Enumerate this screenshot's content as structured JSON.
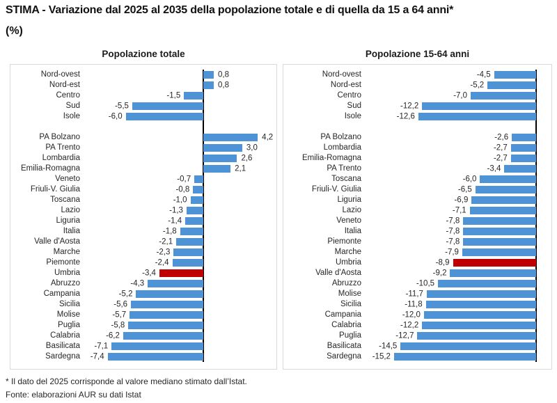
{
  "header": {
    "title": "STIMA - Variazione dal 2025 al 2035 della popolazione totale e di quella da 15 a 64 anni*",
    "unit_line": "(%)"
  },
  "footer": {
    "note": "* Il dato del 2025 corrisponde al valore mediano stimato dall’Istat.",
    "source": "Fonte: elaborazioni AUR su dati Istat"
  },
  "colors": {
    "bar": "#4E93D6",
    "highlight": "#C00000",
    "axis": "#000000",
    "panel_border": "#D9D9D9",
    "text": "#262626"
  },
  "chart_data": [
    {
      "type": "bar",
      "orientation": "horizontal",
      "title": "Popolazione totale",
      "unit": "%",
      "xlim": [
        -9.1,
        5.32
      ],
      "grid": false,
      "legend": false,
      "groups": [
        {
          "name": "macro-aree",
          "rows": [
            {
              "label": "Nord-ovest",
              "value": 0.8,
              "display": "0,8"
            },
            {
              "label": "Nord-est",
              "value": 0.8,
              "display": "0,8"
            },
            {
              "label": "Centro",
              "value": -1.5,
              "display": "-1,5"
            },
            {
              "label": "Sud",
              "value": -5.5,
              "display": "-5,5"
            },
            {
              "label": "Isole",
              "value": -6.0,
              "display": "-6,0"
            }
          ]
        },
        {
          "name": "regioni",
          "rows": [
            {
              "label": "PA Bolzano",
              "value": 4.2,
              "display": "4,2"
            },
            {
              "label": "PA Trento",
              "value": 3.0,
              "display": "3,0"
            },
            {
              "label": "Lombardia",
              "value": 2.6,
              "display": "2,6"
            },
            {
              "label": "Emilia-Romagna",
              "value": 2.1,
              "display": "2,1"
            },
            {
              "label": "Veneto",
              "value": -0.7,
              "display": "-0,7"
            },
            {
              "label": "Friuli-V. Giulia",
              "value": -0.8,
              "display": "-0,8"
            },
            {
              "label": "Toscana",
              "value": -1.0,
              "display": "-1,0"
            },
            {
              "label": "Lazio",
              "value": -1.3,
              "display": "-1,3"
            },
            {
              "label": "Liguria",
              "value": -1.4,
              "display": "-1,4"
            },
            {
              "label": "Italia",
              "value": -1.8,
              "display": "-1,8"
            },
            {
              "label": "Valle d'Aosta",
              "value": -2.1,
              "display": "-2,1"
            },
            {
              "label": "Marche",
              "value": -2.3,
              "display": "-2,3"
            },
            {
              "label": "Piemonte",
              "value": -2.4,
              "display": "-2,4"
            },
            {
              "label": "Umbria",
              "value": -3.4,
              "display": "-3,4",
              "highlight": true
            },
            {
              "label": "Abruzzo",
              "value": -4.3,
              "display": "-4,3"
            },
            {
              "label": "Campania",
              "value": -5.2,
              "display": "-5,2"
            },
            {
              "label": "Sicilia",
              "value": -5.6,
              "display": "-5,6"
            },
            {
              "label": "Molise",
              "value": -5.7,
              "display": "-5,7"
            },
            {
              "label": "Puglia",
              "value": -5.8,
              "display": "-5,8"
            },
            {
              "label": "Calabria",
              "value": -6.2,
              "display": "-6,2"
            },
            {
              "label": "Basilicata",
              "value": -7.1,
              "display": "-7,1"
            },
            {
              "label": "Sardegna",
              "value": -7.4,
              "display": "-7,4"
            }
          ]
        }
      ]
    },
    {
      "type": "bar",
      "orientation": "horizontal",
      "title": "Popolazione 15-64 anni",
      "unit": "%",
      "xlim": [
        -17.95,
        1.19
      ],
      "grid": false,
      "legend": false,
      "groups": [
        {
          "name": "macro-aree",
          "rows": [
            {
              "label": "Nord-ovest",
              "value": -4.5,
              "display": "-4,5"
            },
            {
              "label": "Nord-est",
              "value": -5.2,
              "display": "-5,2"
            },
            {
              "label": "Centro",
              "value": -7.0,
              "display": "-7,0"
            },
            {
              "label": "Sud",
              "value": -12.2,
              "display": "-12,2"
            },
            {
              "label": "Isole",
              "value": -12.6,
              "display": "-12,6"
            }
          ]
        },
        {
          "name": "regioni",
          "rows": [
            {
              "label": "PA Bolzano",
              "value": -2.6,
              "display": "-2,6"
            },
            {
              "label": "Lombardia",
              "value": -2.7,
              "display": "-2,7"
            },
            {
              "label": "Emilia-Romagna",
              "value": -2.7,
              "display": "-2,7"
            },
            {
              "label": "PA Trento",
              "value": -3.4,
              "display": "-3,4"
            },
            {
              "label": "Toscana",
              "value": -6.0,
              "display": "-6,0"
            },
            {
              "label": "Friuli-V. Giulia",
              "value": -6.5,
              "display": "-6,5"
            },
            {
              "label": "Liguria",
              "value": -6.9,
              "display": "-6,9"
            },
            {
              "label": "Lazio",
              "value": -7.1,
              "display": "-7,1"
            },
            {
              "label": "Veneto",
              "value": -7.8,
              "display": "-7,8"
            },
            {
              "label": "Italia",
              "value": -7.8,
              "display": "-7,8"
            },
            {
              "label": "Piemonte",
              "value": -7.8,
              "display": "-7,8"
            },
            {
              "label": "Marche",
              "value": -7.9,
              "display": "-7,9"
            },
            {
              "label": "Umbria",
              "value": -8.9,
              "display": "-8,9",
              "highlight": true
            },
            {
              "label": "Valle d'Aosta",
              "value": -9.2,
              "display": "-9,2"
            },
            {
              "label": "Abruzzo",
              "value": -10.5,
              "display": "-10,5"
            },
            {
              "label": "Molise",
              "value": -11.7,
              "display": "-11,7"
            },
            {
              "label": "Sicilia",
              "value": -11.8,
              "display": "-11,8"
            },
            {
              "label": "Campania",
              "value": -12.0,
              "display": "-12,0"
            },
            {
              "label": "Calabria",
              "value": -12.2,
              "display": "-12,2"
            },
            {
              "label": "Puglia",
              "value": -12.7,
              "display": "-12,7"
            },
            {
              "label": "Basilicata",
              "value": -14.5,
              "display": "-14,5"
            },
            {
              "label": "Sardegna",
              "value": -15.2,
              "display": "-15,2"
            }
          ]
        }
      ]
    }
  ]
}
